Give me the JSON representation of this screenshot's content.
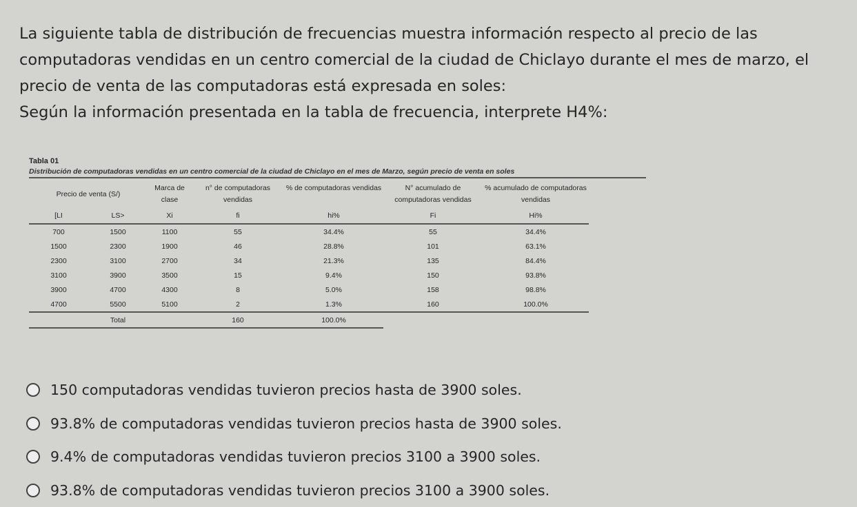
{
  "question": {
    "paragraph": "La siguiente tabla de distribución de frecuencias muestra información respecto al precio de las computadoras vendidas en un centro comercial de la ciudad de Chiclayo durante el mes de marzo, el precio de venta de las computadoras está expresada en soles:",
    "prompt": "Según la información presentada en la tabla de frecuencia, interprete H4%:"
  },
  "table": {
    "label": "Tabla 01",
    "caption": "Distribución de computadoras vendidas en un centro comercial de la ciudad de Chiclayo en el mes de Marzo, según precio de venta en soles",
    "headers": [
      "Precio de venta (S/)",
      "Marca de clase",
      "n° de computadoras vendidas",
      "% de computadoras vendidas",
      "N° acumulado de computadoras vendidas",
      "% acumulado de computadoras vendidas"
    ],
    "subheaders": [
      "[LI",
      "LS>",
      "Xi",
      "fi",
      "hi%",
      "Fi",
      "Hi%"
    ],
    "rows": [
      [
        "700",
        "1500",
        "1100",
        "55",
        "34.4%",
        "55",
        "34.4%"
      ],
      [
        "1500",
        "2300",
        "1900",
        "46",
        "28.8%",
        "101",
        "63.1%"
      ],
      [
        "2300",
        "3100",
        "2700",
        "34",
        "21.3%",
        "135",
        "84.4%"
      ],
      [
        "3100",
        "3900",
        "3500",
        "15",
        "9.4%",
        "150",
        "93.8%"
      ],
      [
        "3900",
        "4700",
        "4300",
        "8",
        "5.0%",
        "158",
        "98.8%"
      ],
      [
        "4700",
        "5500",
        "5100",
        "2",
        "1.3%",
        "160",
        "100.0%"
      ]
    ],
    "total": {
      "label": "Total",
      "fi": "160",
      "hi": "100.0%"
    }
  },
  "options": [
    "150 computadoras vendidas tuvieron precios hasta de 3900 soles.",
    "93.8% de computadoras vendidas tuvieron precios hasta de 3900 soles.",
    "9.4% de computadoras vendidas tuvieron precios 3100 a 3900 soles.",
    "93.8% de computadoras vendidas tuvieron precios 3100 a 3900 soles."
  ]
}
